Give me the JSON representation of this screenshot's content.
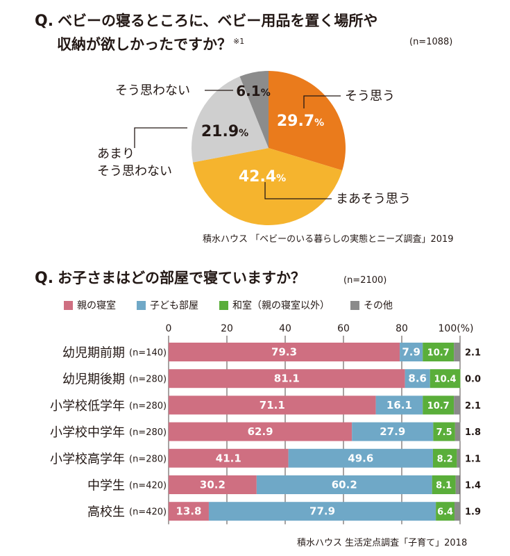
{
  "q1": {
    "prefix": "Q.",
    "line1": "ベビーの寝るところに、ベビー用品を置く場所や",
    "line2": "収納が欲しかったですか？",
    "note": "※1",
    "n": "(n=1088)",
    "source": "積水ハウス 「ベビーのいる暮らしの実態とニーズ調査」2019"
  },
  "q2": {
    "prefix": "Q.",
    "title": "お子さまはどの部屋で寝ていますか？",
    "n": "(n=2100)",
    "source": "積水ハウス 生活定点調査「子育て」2018"
  },
  "chart_data": [
    {
      "type": "pie",
      "slices": [
        {
          "label": "そう思う",
          "value": 29.7,
          "value_label": "29.7%",
          "color": "#ea7b1c"
        },
        {
          "label": "まあそう思う",
          "value": 42.4,
          "value_label": "42.4%",
          "color": "#f5b42e"
        },
        {
          "label": "あまり\nそう思わない",
          "label_line1": "あまり",
          "label_line2": "そう思わない",
          "value": 21.9,
          "value_label": "21.9%",
          "color": "#cfcfcf"
        },
        {
          "label": "そう思わない",
          "value": 6.1,
          "value_label": "6.1%",
          "color": "#8c8c8c"
        }
      ]
    },
    {
      "type": "bar",
      "orientation": "horizontal",
      "stacked": true,
      "xlim": [
        0,
        100
      ],
      "x_ticks": [
        "0",
        "20",
        "40",
        "60",
        "80",
        "100(%)"
      ],
      "series": [
        {
          "name": "親の寝室",
          "color": "#cf6f81"
        },
        {
          "name": "子ども部屋",
          "color": "#6fa8c7"
        },
        {
          "name": "和室（親の寝室以外）",
          "color": "#5aae3a"
        },
        {
          "name": "その他",
          "color": "#8a8a8a"
        }
      ],
      "rows": [
        {
          "category": "幼児期前期",
          "n": "(n=140)",
          "values": [
            79.3,
            7.9,
            10.7,
            2.1
          ],
          "labels": [
            "79.3",
            "7.9",
            "10.7",
            "2.1"
          ]
        },
        {
          "category": "幼児期後期",
          "n": "(n=280)",
          "values": [
            81.1,
            8.6,
            10.4,
            0.0
          ],
          "labels": [
            "81.1",
            "8.6",
            "10.4",
            "0.0"
          ]
        },
        {
          "category": "小学校低学年",
          "n": "(n=280)",
          "values": [
            71.1,
            16.1,
            10.7,
            2.1
          ],
          "labels": [
            "71.1",
            "16.1",
            "10.7",
            "2.1"
          ]
        },
        {
          "category": "小学校中学年",
          "n": "(n=280)",
          "values": [
            62.9,
            27.9,
            7.5,
            1.8
          ],
          "labels": [
            "62.9",
            "27.9",
            "7.5",
            "1.8"
          ]
        },
        {
          "category": "小学校高学年",
          "n": "(n=280)",
          "values": [
            41.1,
            49.6,
            8.2,
            1.1
          ],
          "labels": [
            "41.1",
            "49.6",
            "8.2",
            "1.1"
          ]
        },
        {
          "category": "中学生",
          "n": "(n=420)",
          "values": [
            30.2,
            60.2,
            8.1,
            1.4
          ],
          "labels": [
            "30.2",
            "60.2",
            "8.1",
            "1.4"
          ]
        },
        {
          "category": "高校生",
          "n": "(n=420)",
          "values": [
            13.8,
            77.9,
            6.4,
            1.9
          ],
          "labels": [
            "13.8",
            "77.9",
            "6.4",
            "1.9"
          ]
        }
      ]
    }
  ]
}
